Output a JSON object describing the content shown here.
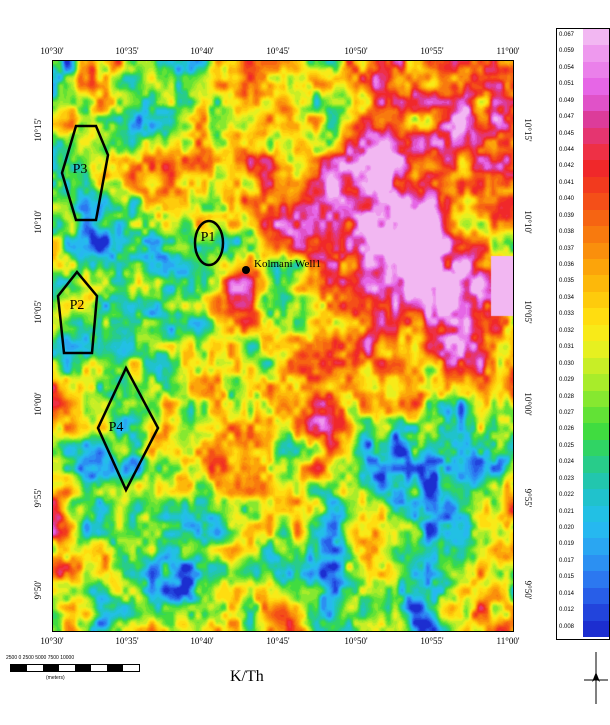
{
  "map": {
    "title": "K/Th",
    "axis_top_labels": [
      "10°30'",
      "10°35'",
      "10°40'",
      "10°45'",
      "10°50'",
      "10°55'",
      "11°00'"
    ],
    "axis_bottom_labels": [
      "10°30'",
      "10°35'",
      "10°40'",
      "10°45'",
      "10°50'",
      "10°55'",
      "11°00'"
    ],
    "axis_left_labels": [
      "10°15'",
      "10°10'",
      "10°05'",
      "10°00'",
      "9°55'",
      "9°50'"
    ],
    "axis_right_labels": [
      "10°15'",
      "10°10'",
      "10°05'",
      "10°00'",
      "9°55'",
      "9°50'"
    ],
    "zones": [
      {
        "id": "P3",
        "label": "P3"
      },
      {
        "id": "P1",
        "label": "P1"
      },
      {
        "id": "P2",
        "label": "P2"
      },
      {
        "id": "P4",
        "label": "P4"
      }
    ],
    "well": {
      "label": "Kolmani Well1"
    }
  },
  "legend": {
    "values": [
      "0.067",
      "0.059",
      "0.054",
      "0.051",
      "0.049",
      "0.047",
      "0.045",
      "0.044",
      "0.042",
      "0.041",
      "0.040",
      "0.039",
      "0.038",
      "0.037",
      "0.036",
      "0.035",
      "0.034",
      "0.033",
      "0.032",
      "0.031",
      "0.030",
      "0.029",
      "0.028",
      "0.027",
      "0.026",
      "0.025",
      "0.024",
      "0.023",
      "0.022",
      "0.021",
      "0.020",
      "0.019",
      "0.017",
      "0.015",
      "0.014",
      "0.012",
      "0.008"
    ],
    "colors": [
      "#f2b7f2",
      "#ee99ee",
      "#ea80ea",
      "#e666e6",
      "#e052c8",
      "#dc3c9a",
      "#e53570",
      "#ee3045",
      "#f0282a",
      "#f23a1e",
      "#f44f18",
      "#f66412",
      "#f87a0e",
      "#fa8f0c",
      "#fca40a",
      "#fdb80a",
      "#fecb0c",
      "#ffdd10",
      "#f8ea18",
      "#e6f020",
      "#c8ee26",
      "#a8ec2a",
      "#86e830",
      "#62e236",
      "#40dc40",
      "#30d464",
      "#28cc8a",
      "#22c6ae",
      "#20c2cc",
      "#22c0e4",
      "#26b8f0",
      "#2aa6f2",
      "#2c90f2",
      "#2c78f0",
      "#285ee8",
      "#2244dc",
      "#1c2ed0"
    ]
  },
  "scalebar": {
    "numbers": "2500  0  2500 5000 7500 10000",
    "unit": "(meters)"
  }
}
